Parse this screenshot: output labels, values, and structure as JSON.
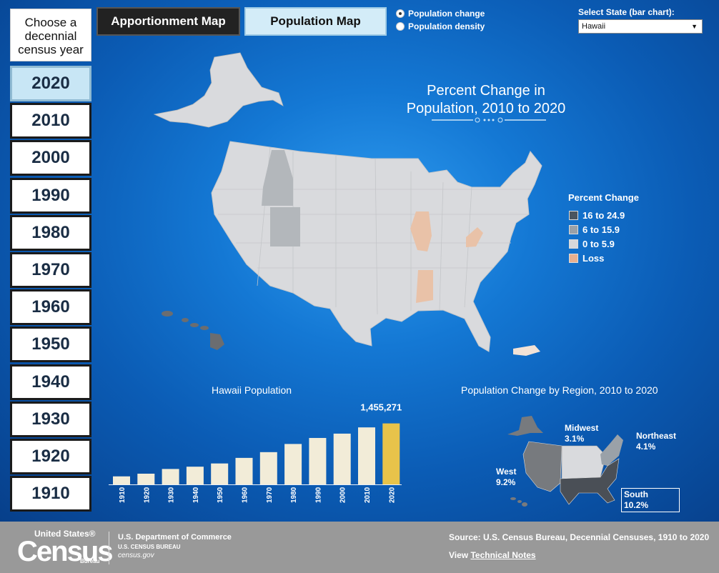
{
  "sidebar": {
    "heading": "Choose a decennial census year",
    "years": [
      "2020",
      "2010",
      "2000",
      "1990",
      "1980",
      "1970",
      "1960",
      "1950",
      "1940",
      "1930",
      "1920",
      "1910"
    ],
    "selected": "2020"
  },
  "toolbar": {
    "apportionment_label": "Apportionment Map",
    "population_label": "Population Map",
    "radio_change": "Population change",
    "radio_density": "Population density",
    "radio_selected": "Population change",
    "state_label": "Select State (bar chart):",
    "state_value": "Hawaii"
  },
  "map": {
    "title_line1": "Percent Change in",
    "title_line2": "Population, 2010 to 2020"
  },
  "legend": {
    "title": "Percent Change",
    "items": [
      {
        "label": "16 to 24.9",
        "color": "#4a5560"
      },
      {
        "label": "6 to 15.9",
        "color": "#9aa1a8"
      },
      {
        "label": "0 to 5.9",
        "color": "#d6d8db"
      },
      {
        "label": "Loss",
        "color": "#e8b08f"
      }
    ]
  },
  "colors": {
    "bar": "#f2ecd8",
    "bar_selected": "#e8c34a",
    "state_fill": "#d9dadd",
    "hawaii_fill": "#6b6d70"
  },
  "chart_data": {
    "type": "bar",
    "title": "Hawaii Population",
    "categories": [
      "1910",
      "1920",
      "1930",
      "1940",
      "1950",
      "1960",
      "1970",
      "1980",
      "1990",
      "2000",
      "2010",
      "2020"
    ],
    "values": [
      191874,
      255912,
      368336,
      422770,
      499794,
      632772,
      769913,
      964691,
      1108229,
      1211537,
      1360301,
      1455271
    ],
    "highlight": "2020",
    "annotation": "1,455,271"
  },
  "regions": {
    "title": "Population Change by Region, 2010 to 2020",
    "items": [
      {
        "name": "Midwest",
        "value": "3.1%"
      },
      {
        "name": "Northeast",
        "value": "4.1%"
      },
      {
        "name": "West",
        "value": "9.2%"
      },
      {
        "name": "South",
        "value": "10.2%"
      }
    ]
  },
  "footer": {
    "logo_top": "United States®",
    "logo_main": "Census",
    "logo_sub": "Bureau",
    "dept": "U.S. Department of Commerce",
    "bureau": "U.S. CENSUS BUREAU",
    "site": "census.gov",
    "source": "Source: U.S. Census Bureau, Decennial Censuses, 1910 to 2020",
    "view_prefix": "View ",
    "view_link": "Technical Notes"
  }
}
